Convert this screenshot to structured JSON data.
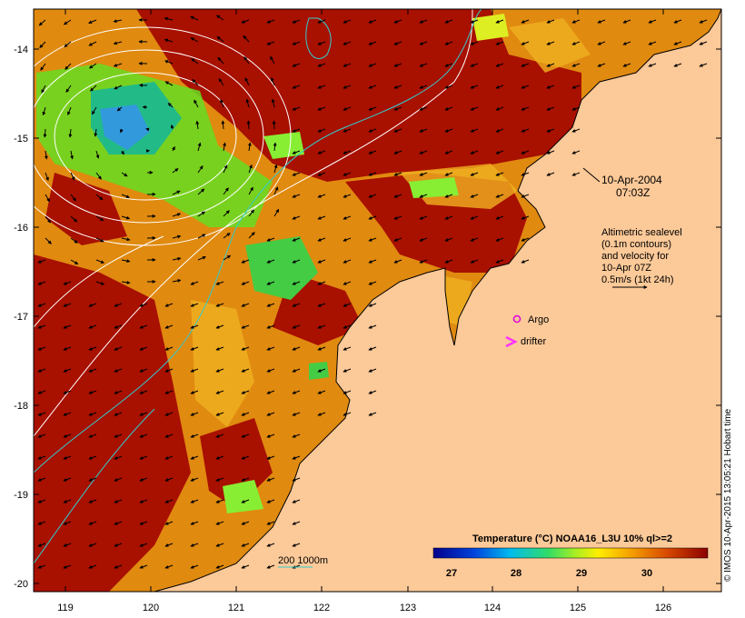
{
  "map": {
    "x_ticks": [
      "119",
      "120",
      "121",
      "122",
      "123",
      "124",
      "125",
      "126"
    ],
    "y_ticks": [
      "-14",
      "-15",
      "-16",
      "-17",
      "-18",
      "-19",
      "-20"
    ],
    "date": "10-Apr-2004",
    "time": "07:03Z",
    "legend_lines": [
      "Altimetric sealevel",
      "(0.1m contours)",
      "and velocity for",
      "10-Apr 07Z",
      "0.5m/s (1kt 24h)"
    ],
    "argo_label": "Argo",
    "drifter_label": "drifter",
    "argo_color": "#dd00dd",
    "drifter_color": "#ff33ff",
    "depth_label": "200  1000m",
    "depth_color": "#33cccc",
    "land_color": "#fcc998",
    "ocean_warm_color": "#a81000",
    "colorbar_title": "Temperature (°C) NOAA16_L3U 10% ql>=2",
    "colorbar_ticks": [
      "27",
      "28",
      "29",
      "30"
    ],
    "credit": "© IMOS 10-Apr-2015 13:05:21 Hobart time"
  }
}
